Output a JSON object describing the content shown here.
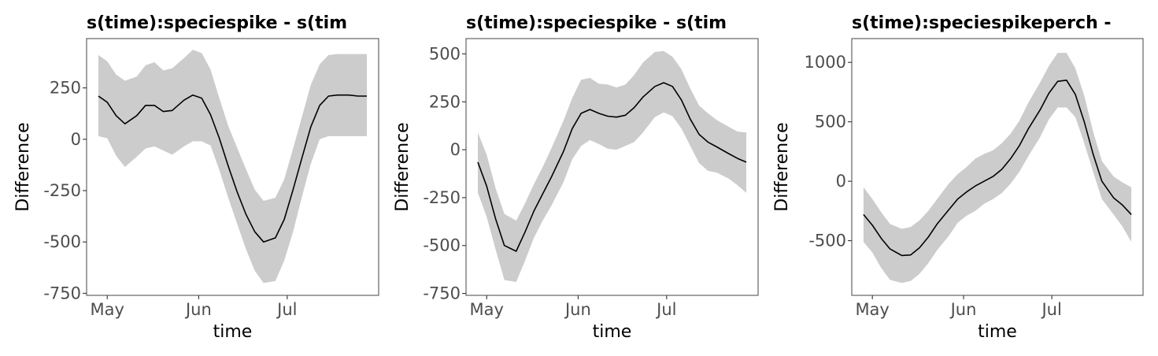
{
  "chart_data": [
    {
      "type": "line",
      "title": "s(time):speciespike - s(tim",
      "xlabel": "time",
      "ylabel": "Difference",
      "x_ticks": [
        {
          "label": "May",
          "value": 0
        },
        {
          "label": "Jun",
          "value": 31
        },
        {
          "label": "Jul",
          "value": 61
        }
      ],
      "xlim": [
        -7,
        92
      ],
      "ylim": [
        -760,
        490
      ],
      "y_ticks": [
        {
          "label": "250",
          "value": 250
        },
        {
          "label": "0",
          "value": 0
        },
        {
          "label": "-250",
          "value": -250
        },
        {
          "label": "-500",
          "value": -500
        },
        {
          "label": "-750",
          "value": -750
        }
      ],
      "series": [
        {
          "x": [
            -3,
            0,
            3,
            6,
            10,
            13,
            16,
            19,
            22,
            26,
            29,
            32,
            35,
            38,
            41,
            44,
            47,
            50,
            53,
            57,
            60,
            63,
            66,
            69,
            72,
            75,
            78,
            82,
            85,
            88
          ],
          "y": [
            210,
            180,
            115,
            75,
            115,
            165,
            165,
            135,
            140,
            190,
            215,
            200,
            120,
            5,
            -130,
            -255,
            -365,
            -450,
            -500,
            -480,
            -390,
            -245,
            -90,
            60,
            165,
            210,
            215,
            215,
            210,
            210
          ],
          "lower": [
            15,
            5,
            -80,
            -135,
            -85,
            -45,
            -35,
            -55,
            -75,
            -35,
            -10,
            -10,
            -30,
            -150,
            -285,
            -410,
            -535,
            -640,
            -700,
            -690,
            -590,
            -450,
            -280,
            -120,
            0,
            15,
            15,
            15,
            15,
            15
          ],
          "upper": [
            410,
            380,
            315,
            285,
            305,
            360,
            375,
            335,
            345,
            395,
            435,
            420,
            340,
            200,
            65,
            -40,
            -145,
            -245,
            -300,
            -285,
            -195,
            -45,
            110,
            265,
            365,
            410,
            415,
            415,
            415,
            415
          ]
        }
      ]
    },
    {
      "type": "line",
      "title": "s(time):speciespike - s(tim",
      "xlabel": "time",
      "ylabel": "Difference",
      "x_ticks": [
        {
          "label": "May",
          "value": 0
        },
        {
          "label": "Jun",
          "value": 31
        },
        {
          "label": "Jul",
          "value": 61
        }
      ],
      "xlim": [
        -7,
        92
      ],
      "ylim": [
        -760,
        580
      ],
      "y_ticks": [
        {
          "label": "500",
          "value": 500
        },
        {
          "label": "250",
          "value": 250
        },
        {
          "label": "0",
          "value": 0
        },
        {
          "label": "-250",
          "value": -250
        },
        {
          "label": "-500",
          "value": -500
        },
        {
          "label": "-750",
          "value": -750
        }
      ],
      "series": [
        {
          "x": [
            -3,
            0,
            3,
            6,
            10,
            13,
            16,
            19,
            22,
            26,
            29,
            32,
            35,
            38,
            41,
            44,
            47,
            50,
            53,
            57,
            60,
            63,
            66,
            69,
            72,
            75,
            78,
            82,
            85,
            88
          ],
          "y": [
            -65,
            -190,
            -360,
            -500,
            -530,
            -430,
            -320,
            -230,
            -140,
            -10,
            110,
            190,
            210,
            190,
            175,
            170,
            180,
            220,
            275,
            330,
            350,
            330,
            260,
            160,
            80,
            40,
            15,
            -20,
            -45,
            -65
          ],
          "lower": [
            -225,
            -350,
            -520,
            -680,
            -690,
            -580,
            -460,
            -370,
            -290,
            -170,
            -50,
            20,
            50,
            30,
            5,
            0,
            20,
            40,
            90,
            170,
            195,
            175,
            110,
            20,
            -70,
            -110,
            -120,
            -150,
            -185,
            -225
          ],
          "upper": [
            90,
            -25,
            -200,
            -335,
            -370,
            -280,
            -180,
            -90,
            10,
            150,
            270,
            365,
            375,
            345,
            340,
            325,
            340,
            390,
            455,
            510,
            515,
            485,
            420,
            320,
            230,
            190,
            155,
            120,
            95,
            90
          ]
        }
      ]
    },
    {
      "type": "line",
      "title": "s(time):speciespikeperch -",
      "xlabel": "time",
      "ylabel": "Difference",
      "x_ticks": [
        {
          "label": "May",
          "value": 0
        },
        {
          "label": "Jun",
          "value": 31
        },
        {
          "label": "Jul",
          "value": 61
        }
      ],
      "xlim": [
        -7,
        92
      ],
      "ylim": [
        -960,
        1200
      ],
      "y_ticks": [
        {
          "label": "1000",
          "value": 1000
        },
        {
          "label": "500",
          "value": 500
        },
        {
          "label": "0",
          "value": 0
        },
        {
          "label": "-500",
          "value": -500
        }
      ],
      "series": [
        {
          "x": [
            -3,
            0,
            3,
            6,
            10,
            13,
            16,
            19,
            22,
            26,
            29,
            32,
            35,
            38,
            41,
            44,
            47,
            50,
            53,
            57,
            60,
            63,
            66,
            69,
            72,
            75,
            78,
            82,
            85,
            88
          ],
          "y": [
            -280,
            -370,
            -480,
            -570,
            -625,
            -620,
            -560,
            -470,
            -360,
            -240,
            -150,
            -90,
            -40,
            0,
            40,
            100,
            190,
            300,
            440,
            600,
            740,
            840,
            850,
            730,
            500,
            230,
            0,
            -140,
            -200,
            -280
          ],
          "lower": [
            -510,
            -600,
            -730,
            -830,
            -855,
            -840,
            -780,
            -690,
            -580,
            -460,
            -350,
            -290,
            -250,
            -190,
            -150,
            -100,
            -20,
            80,
            210,
            370,
            520,
            620,
            620,
            540,
            320,
            80,
            -150,
            -280,
            -380,
            -510
          ],
          "upper": [
            -50,
            -150,
            -260,
            -360,
            -400,
            -385,
            -330,
            -250,
            -150,
            -20,
            60,
            120,
            190,
            230,
            260,
            320,
            400,
            510,
            660,
            830,
            970,
            1080,
            1080,
            950,
            720,
            420,
            170,
            40,
            -10,
            -50
          ]
        }
      ]
    }
  ],
  "colors": {
    "band": "#cccccc",
    "line": "#000000",
    "frame": "#555555"
  }
}
